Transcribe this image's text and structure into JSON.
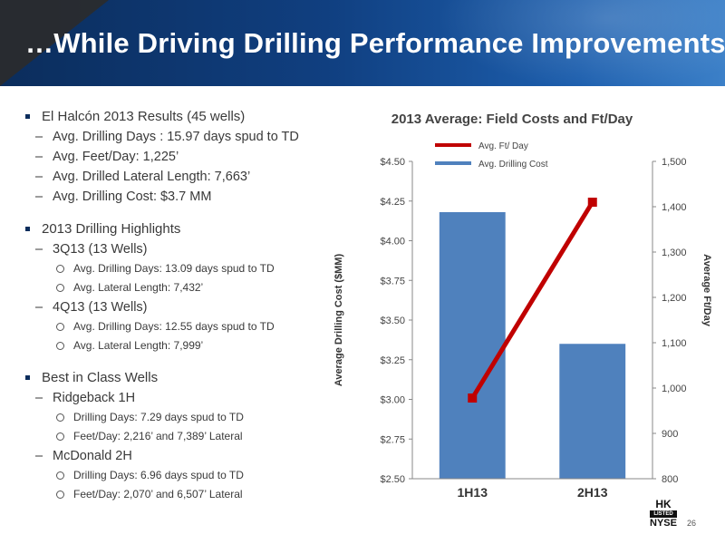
{
  "header": {
    "title": "…While Driving Drilling Performance Improvements"
  },
  "bullets": {
    "s1": {
      "title": "El Halcón 2013 Results (45 wells)",
      "items": [
        "Avg. Drilling Days : 15.97 days spud to TD",
        "Avg. Feet/Day: 1,225’",
        "Avg. Drilled Lateral Length: 7,663’",
        "Avg. Drilling Cost: $3.7 MM"
      ]
    },
    "s2": {
      "title": "2013 Drilling Highlights",
      "q3": "3Q13 (13 Wells)",
      "q3_items": [
        "Avg. Drilling Days: 13.09 days spud to TD",
        "Avg. Lateral Length: 7,432’"
      ],
      "q4": "4Q13 (13 Wells)",
      "q4_items": [
        "Avg. Drilling Days: 12.55 days spud to TD",
        "Avg. Lateral Length: 7,999’"
      ]
    },
    "s3": {
      "title": "Best in Class Wells",
      "w1": "Ridgeback 1H",
      "w1_items": [
        "Drilling Days: 7.29 days spud to TD",
        "Feet/Day: 2,216’ and 7,389’ Lateral"
      ],
      "w2": "McDonald 2H",
      "w2_items": [
        "Drilling Days: 6.96 days spud to TD",
        "Feet/Day: 2,070’ and 6,507’ Lateral"
      ]
    }
  },
  "chart_data": {
    "type": "bar",
    "title": "2013 Average: Field Costs and Ft/Day",
    "categories": [
      "1H13",
      "2H13"
    ],
    "ylabel": "Average Drilling Cost ($MM)",
    "y2label": "Average Ft/Day",
    "ylim": [
      2.5,
      4.5
    ],
    "y2lim": [
      800,
      1500
    ],
    "yticks": [
      "$2.50",
      "$2.75",
      "$3.00",
      "$3.25",
      "$3.50",
      "$3.75",
      "$4.00",
      "$4.25",
      "$4.50"
    ],
    "y2ticks": [
      "800",
      "900",
      "1,000",
      "1,100",
      "1,200",
      "1,300",
      "1,400",
      "1,500"
    ],
    "legend_position": "top-center",
    "grid": false,
    "series": [
      {
        "name": "Avg. Drilling Cost",
        "kind": "bar",
        "axis": "left",
        "color": "#4f81bd",
        "values": [
          4.18,
          3.35
        ]
      },
      {
        "name": "Avg. Ft/ Day",
        "kind": "line",
        "axis": "right",
        "color": "#c00000",
        "values": [
          978,
          1410
        ]
      }
    ]
  },
  "footer": {
    "page": "26",
    "logo_hk": "HK",
    "logo_listed": "LISTED",
    "logo_nyse": "NYSE"
  }
}
